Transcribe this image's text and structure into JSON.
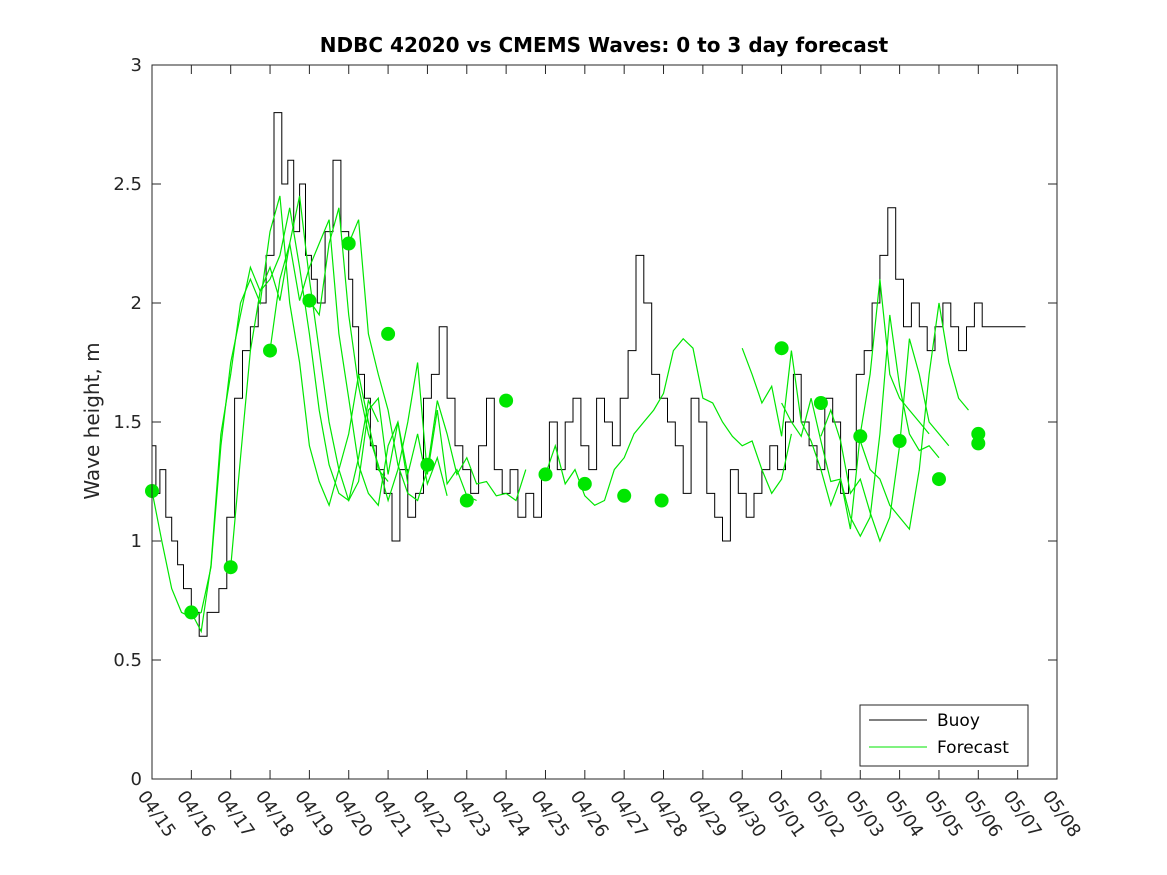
{
  "chart_data": {
    "type": "line",
    "title": "NDBC 42020 vs CMEMS Waves: 0 to 3 day forecast",
    "xlabel": "",
    "ylabel": "Wave height, m",
    "x_tick_labels": [
      "04/15",
      "04/16",
      "04/17",
      "04/18",
      "04/19",
      "04/20",
      "04/21",
      "04/22",
      "04/23",
      "04/24",
      "04/25",
      "04/26",
      "04/27",
      "04/28",
      "04/29",
      "04/30",
      "05/01",
      "05/02",
      "05/03",
      "05/04",
      "05/05",
      "05/06",
      "05/07",
      "05/08"
    ],
    "y_ticks": [
      0,
      0.5,
      1,
      1.5,
      2,
      2.5,
      3
    ],
    "ylim": [
      0,
      3
    ],
    "xlim": [
      "04/15",
      "05/08"
    ],
    "grid": false,
    "legend": {
      "position": "bottom-right",
      "entries": [
        "Buoy",
        "Forecast"
      ]
    },
    "colors": {
      "buoy": "#000000",
      "forecast": "#00e600",
      "axes": "#262626"
    },
    "series": [
      {
        "name": "Buoy",
        "x_day": [
          0.0,
          0.1,
          0.2,
          0.35,
          0.5,
          0.65,
          0.8,
          1.0,
          1.2,
          1.4,
          1.55,
          1.7,
          1.9,
          2.1,
          2.3,
          2.5,
          2.7,
          2.9,
          3.1,
          3.3,
          3.45,
          3.6,
          3.75,
          3.9,
          4.05,
          4.2,
          4.4,
          4.6,
          4.8,
          5.0,
          5.1,
          5.25,
          5.4,
          5.55,
          5.7,
          5.9,
          6.1,
          6.3,
          6.5,
          6.7,
          6.9,
          7.1,
          7.3,
          7.5,
          7.7,
          7.9,
          8.1,
          8.3,
          8.5,
          8.7,
          8.9,
          9.1,
          9.3,
          9.5,
          9.7,
          9.9,
          10.1,
          10.3,
          10.5,
          10.7,
          10.9,
          11.1,
          11.3,
          11.5,
          11.7,
          11.9,
          12.1,
          12.3,
          12.5,
          12.7,
          12.9,
          13.1,
          13.3,
          13.5,
          13.7,
          13.9,
          14.1,
          14.3,
          14.5,
          14.7,
          14.9,
          15.1,
          15.3,
          15.5,
          15.7,
          15.9,
          16.1,
          16.3,
          16.5,
          16.7,
          16.9,
          17.1,
          17.3,
          17.5,
          17.7,
          17.9,
          18.1,
          18.3,
          18.5,
          18.7,
          18.9,
          19.1,
          19.3,
          19.5,
          19.7,
          19.9,
          20.1,
          20.3,
          20.5,
          20.7,
          20.9,
          21.1,
          21.3,
          21.5,
          21.7,
          21.9,
          22.1,
          22.2
        ],
        "values": [
          1.4,
          1.2,
          1.3,
          1.1,
          1.0,
          0.9,
          0.8,
          0.7,
          0.6,
          0.7,
          0.7,
          0.8,
          1.1,
          1.6,
          1.8,
          1.9,
          2.0,
          2.2,
          2.8,
          2.5,
          2.6,
          2.3,
          2.5,
          2.2,
          2.1,
          2.0,
          2.3,
          2.6,
          2.3,
          2.1,
          1.9,
          1.7,
          1.6,
          1.4,
          1.3,
          1.2,
          1.0,
          1.3,
          1.1,
          1.2,
          1.6,
          1.7,
          1.9,
          1.6,
          1.4,
          1.3,
          1.2,
          1.4,
          1.6,
          1.3,
          1.2,
          1.3,
          1.1,
          1.2,
          1.1,
          1.3,
          1.5,
          1.3,
          1.5,
          1.6,
          1.4,
          1.3,
          1.6,
          1.5,
          1.4,
          1.6,
          1.8,
          2.2,
          2.0,
          1.7,
          1.6,
          1.5,
          1.4,
          1.2,
          1.6,
          1.5,
          1.2,
          1.1,
          1.0,
          1.3,
          1.2,
          1.1,
          1.2,
          1.3,
          1.4,
          1.3,
          1.5,
          1.7,
          1.5,
          1.4,
          1.3,
          1.6,
          1.5,
          1.2,
          1.3,
          1.7,
          1.8,
          2.0,
          2.2,
          2.4,
          2.1,
          1.9,
          2.0,
          1.9,
          1.8,
          1.9,
          2.0,
          1.9,
          1.8,
          1.9,
          2.0,
          1.9,
          1.9,
          1.9,
          1.9,
          1.9,
          1.9,
          1.9
        ]
      },
      {
        "name": "Forecast",
        "runs": [
          {
            "start_day": 0.0,
            "values": [
              1.21,
              1.0,
              0.8,
              0.7,
              0.68,
              0.7,
              0.89,
              1.4,
              1.75,
              1.95,
              2.15,
              2.05,
              2.1,
              2.2,
              2.4,
              2.15,
              1.87,
              1.55,
              1.32,
              1.2,
              1.17,
              1.35,
              1.59,
              1.5
            ]
          },
          {
            "start_day": 1.0,
            "values": [
              0.7,
              0.62,
              0.9,
              1.45,
              1.7,
              2.0,
              2.1,
              2.0,
              2.3,
              2.45,
              2.0,
              1.75,
              1.4,
              1.25,
              1.15,
              1.3,
              1.45,
              1.7,
              1.5,
              1.3,
              1.25
            ]
          },
          {
            "start_day": 2.0,
            "values": [
              0.89,
              1.35,
              1.8,
              2.05,
              2.15,
              2.01,
              2.25,
              2.45,
              2.1,
              1.8,
              1.5,
              1.3,
              1.17,
              1.25,
              1.55,
              1.6,
              1.28,
              1.5,
              1.24
            ]
          },
          {
            "start_day": 3.0,
            "values": [
              1.8,
              2.1,
              2.25,
              2.01,
              2.15,
              2.25,
              2.35,
              1.87,
              1.6,
              1.32,
              1.2,
              1.15,
              1.4,
              1.5,
              1.28,
              1.45,
              1.24,
              1.35,
              1.19
            ]
          },
          {
            "start_day": 4.0,
            "values": [
              2.01,
              1.95,
              2.25,
              2.4,
              1.95,
              1.65,
              1.45,
              1.32,
              1.17,
              1.3,
              1.5,
              1.75,
              1.28,
              1.55,
              1.24,
              1.3,
              1.19,
              1.17
            ]
          },
          {
            "start_day": 5.0,
            "values": [
              2.25,
              2.35,
              1.87,
              1.7,
              1.55,
              1.32,
              1.2,
              1.17,
              1.3,
              1.59,
              1.45,
              1.28,
              1.35,
              1.24,
              1.25,
              1.19,
              1.2,
              1.17,
              1.3
            ]
          },
          {
            "start_day": 10.0,
            "values": [
              1.28,
              1.4,
              1.24,
              1.3,
              1.19,
              1.15,
              1.17,
              1.3,
              1.35,
              1.45,
              1.5,
              1.55,
              1.62,
              1.8,
              1.85,
              1.81,
              1.6,
              1.58,
              1.5,
              1.44,
              1.4,
              1.42,
              1.3,
              1.2,
              1.26,
              1.45
            ]
          },
          {
            "start_day": 15.0,
            "values": [
              1.81,
              1.7,
              1.58,
              1.65,
              1.44,
              1.8,
              1.5,
              1.42,
              1.3,
              1.15,
              1.26,
              1.05,
              1.45,
              1.7,
              2.1,
              1.7,
              1.6,
              1.55,
              1.5,
              1.45
            ]
          },
          {
            "start_day": 16.0,
            "values": [
              1.58,
              1.5,
              1.44,
              1.6,
              1.42,
              1.25,
              1.26,
              1.1,
              1.02,
              1.1,
              1.45,
              1.95,
              1.65,
              1.45,
              1.38,
              1.4,
              1.35
            ]
          },
          {
            "start_day": 17.0,
            "values": [
              1.44,
              1.55,
              1.42,
              1.2,
              1.26,
              1.12,
              1.0,
              1.1,
              1.4,
              1.85,
              1.7,
              1.5,
              1.45,
              1.4
            ]
          },
          {
            "start_day": 18.0,
            "values": [
              1.42,
              1.3,
              1.26,
              1.15,
              1.1,
              1.05,
              1.3,
              1.7,
              2.0,
              1.75,
              1.6,
              1.55
            ]
          }
        ],
        "markers": {
          "x_day": [
            0.0,
            1.0,
            2.0,
            3.0,
            4.0,
            5.0,
            6.0,
            7.0,
            8.0,
            9.0,
            10.0,
            11.0,
            12.0,
            12.95,
            16.0,
            17.0,
            18.0,
            19.0,
            20.0,
            21.0,
            21.0
          ],
          "values": [
            1.21,
            0.7,
            0.89,
            1.8,
            2.01,
            2.25,
            1.87,
            1.32,
            1.17,
            1.59,
            1.28,
            1.24,
            1.19,
            1.17,
            1.81,
            1.58,
            1.44,
            1.42,
            1.26,
            1.45,
            1.41
          ]
        }
      }
    ]
  }
}
